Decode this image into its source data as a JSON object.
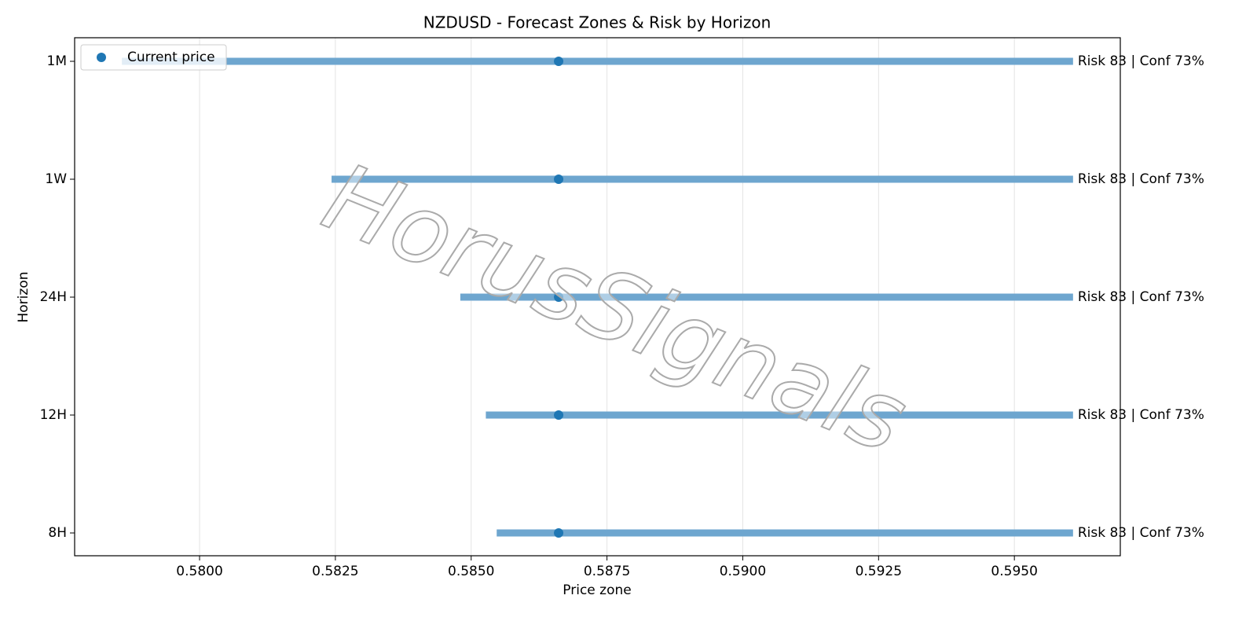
{
  "chart_data": {
    "type": "range",
    "title": "NZDUSD - Forecast Zones & Risk by Horizon",
    "xlabel": "Price zone",
    "ylabel": "Horizon",
    "watermark": "HorusSignals",
    "categories": [
      "1M",
      "1W",
      "24H",
      "12H",
      "8H"
    ],
    "ranges": {
      "color": "#6ea6cf",
      "low": [
        0.57857,
        0.58243,
        0.5848,
        0.58527,
        0.58547
      ],
      "high": [
        0.59608,
        0.59608,
        0.59608,
        0.59608,
        0.59608
      ]
    },
    "series": [
      {
        "name": "Current price",
        "color": "#1f77b4",
        "values": [
          0.58661,
          0.58661,
          0.58661,
          0.58661,
          0.58661
        ]
      }
    ],
    "annotations": [
      "Risk 83 | Conf 73%",
      "Risk 83 | Conf 73%",
      "Risk 83 | Conf 73%",
      "Risk 83 | Conf 73%",
      "Risk 83 | Conf 73%"
    ],
    "xlim": [
      0.5777,
      0.59695
    ],
    "xticks": [
      {
        "value": 0.58,
        "label": "0.5800"
      },
      0.5825,
      {
        "value": 0.585,
        "label": "0.5850"
      },
      0.5875,
      {
        "value": 0.59,
        "label": "0.5900"
      },
      0.5925,
      {
        "value": 0.595,
        "label": "0.5950"
      }
    ],
    "grid": true,
    "legend": "upper-left"
  }
}
